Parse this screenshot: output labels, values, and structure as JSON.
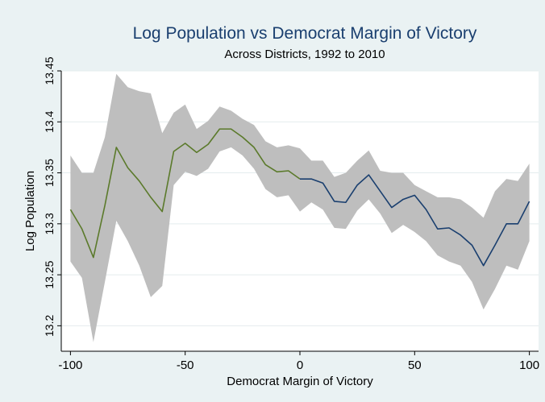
{
  "chart_data": {
    "type": "line",
    "title": "Log Population vs Democrat Margin of Victory",
    "subtitle": "Across Districts, 1992 to 2010",
    "x_label": "Democrat Margin of Victory",
    "y_label": "Log Population",
    "x": [
      -100,
      -95,
      -90,
      -85,
      -80,
      -75,
      -70,
      -65,
      -60,
      -55,
      -50,
      -45,
      -40,
      -35,
      -30,
      -25,
      -20,
      -15,
      -10,
      -5,
      0,
      5,
      10,
      15,
      20,
      25,
      30,
      35,
      40,
      45,
      50,
      55,
      60,
      65,
      70,
      75,
      80,
      85,
      90,
      95,
      100
    ],
    "series": [
      {
        "color": "#5b7a2b",
        "values": [
          13.314,
          13.295,
          13.267,
          13.318,
          13.375,
          13.355,
          13.342,
          13.326,
          13.312,
          13.371,
          13.379,
          13.37,
          13.378,
          13.393,
          13.393,
          13.385,
          13.375,
          13.358,
          13.351,
          13.352,
          13.344,
          null,
          null,
          null,
          null,
          null,
          null,
          null,
          null,
          null,
          null,
          null,
          null,
          null,
          null,
          null,
          null,
          null,
          null,
          null,
          null
        ]
      },
      {
        "color": "#1a3f6f",
        "values": [
          null,
          null,
          null,
          null,
          null,
          null,
          null,
          null,
          null,
          null,
          null,
          null,
          null,
          null,
          null,
          null,
          null,
          null,
          null,
          null,
          13.344,
          13.344,
          13.34,
          13.322,
          13.321,
          13.338,
          13.348,
          13.332,
          13.316,
          13.324,
          13.328,
          13.314,
          13.295,
          13.296,
          13.289,
          13.279,
          13.259,
          13.279,
          13.3,
          13.3,
          13.322
        ]
      }
    ],
    "band": {
      "color": "#bebebe",
      "upper": [
        13.367,
        13.35,
        13.35,
        13.385,
        13.447,
        13.434,
        13.43,
        13.428,
        13.389,
        13.409,
        13.417,
        13.393,
        13.401,
        13.415,
        13.411,
        13.403,
        13.397,
        13.381,
        13.375,
        13.377,
        13.374,
        13.362,
        13.362,
        13.346,
        13.35,
        13.362,
        13.372,
        13.352,
        13.35,
        13.35,
        13.338,
        13.332,
        13.326,
        13.326,
        13.324,
        13.316,
        13.306,
        13.332,
        13.344,
        13.342,
        13.359
      ],
      "lower": [
        13.263,
        13.247,
        13.184,
        13.243,
        13.303,
        13.283,
        13.259,
        13.228,
        13.239,
        13.338,
        13.351,
        13.347,
        13.354,
        13.371,
        13.375,
        13.367,
        13.354,
        13.334,
        13.326,
        13.328,
        13.312,
        13.321,
        13.314,
        13.296,
        13.295,
        13.313,
        13.324,
        13.31,
        13.291,
        13.299,
        13.292,
        13.283,
        13.269,
        13.263,
        13.259,
        13.243,
        13.216,
        13.236,
        13.259,
        13.255,
        13.283
      ]
    },
    "xlim": [
      -104,
      104
    ],
    "ylim": [
      13.175,
      13.45
    ],
    "xticks": [
      -100,
      -50,
      0,
      50,
      100
    ],
    "yticks": [
      13.2,
      13.25,
      13.3,
      13.35,
      13.4,
      13.45
    ],
    "grid": true
  }
}
